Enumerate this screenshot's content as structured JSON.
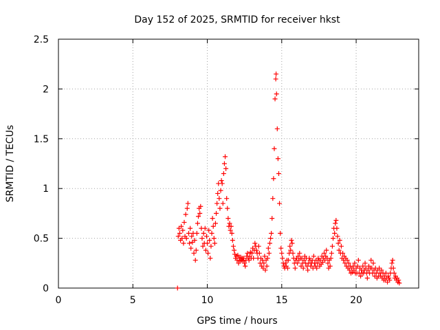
{
  "chart_data": {
    "type": "scatter",
    "title": "Day 152 of 2025, SRMTID for receiver hkst",
    "xlabel": "GPS time / hours",
    "ylabel": "SRMTID / TECUs",
    "xlim": [
      0,
      24.2
    ],
    "ylim": [
      0,
      2.5
    ],
    "xticks": [
      0,
      5,
      10,
      15,
      20
    ],
    "xtick_labels": [
      "0",
      "5",
      "10",
      "15",
      "20"
    ],
    "yticks": [
      0,
      0.5,
      1,
      1.5,
      2,
      2.5
    ],
    "ytick_labels": [
      "0",
      "0.5",
      "1",
      "1.5",
      "2",
      "2.5"
    ],
    "grid": true,
    "marker": "plus",
    "color": "#ff0000",
    "series": [
      {
        "name": "SRMTID",
        "points": [
          [
            8.0,
            0.0
          ],
          [
            8.05,
            0.52
          ],
          [
            8.1,
            0.6
          ],
          [
            8.15,
            0.55
          ],
          [
            8.2,
            0.48
          ],
          [
            8.25,
            0.62
          ],
          [
            8.3,
            0.5
          ],
          [
            8.35,
            0.58
          ],
          [
            8.4,
            0.45
          ],
          [
            8.45,
            0.66
          ],
          [
            8.5,
            0.52
          ],
          [
            8.55,
            0.74
          ],
          [
            8.6,
            0.5
          ],
          [
            8.65,
            0.8
          ],
          [
            8.7,
            0.85
          ],
          [
            8.75,
            0.55
          ],
          [
            8.8,
            0.45
          ],
          [
            8.85,
            0.6
          ],
          [
            8.9,
            0.4
          ],
          [
            8.95,
            0.52
          ],
          [
            9.0,
            0.46
          ],
          [
            9.05,
            0.55
          ],
          [
            9.1,
            0.35
          ],
          [
            9.15,
            0.48
          ],
          [
            9.2,
            0.28
          ],
          [
            9.25,
            0.38
          ],
          [
            9.3,
            0.55
          ],
          [
            9.35,
            0.65
          ],
          [
            9.4,
            0.72
          ],
          [
            9.45,
            0.8
          ],
          [
            9.5,
            0.75
          ],
          [
            9.55,
            0.82
          ],
          [
            9.6,
            0.6
          ],
          [
            9.65,
            0.5
          ],
          [
            9.7,
            0.42
          ],
          [
            9.75,
            0.55
          ],
          [
            9.8,
            0.45
          ],
          [
            9.85,
            0.6
          ],
          [
            9.9,
            0.38
          ],
          [
            9.95,
            0.52
          ],
          [
            10.0,
            0.45
          ],
          [
            10.05,
            0.35
          ],
          [
            10.1,
            0.58
          ],
          [
            10.15,
            0.48
          ],
          [
            10.2,
            0.3
          ],
          [
            10.25,
            0.42
          ],
          [
            10.3,
            0.55
          ],
          [
            10.35,
            0.7
          ],
          [
            10.4,
            0.62
          ],
          [
            10.45,
            0.5
          ],
          [
            10.5,
            0.45
          ],
          [
            10.55,
            0.65
          ],
          [
            10.6,
            0.75
          ],
          [
            10.65,
            0.85
          ],
          [
            10.7,
            0.95
          ],
          [
            10.75,
            1.05
          ],
          [
            10.8,
            0.9
          ],
          [
            10.85,
            0.8
          ],
          [
            10.9,
            0.98
          ],
          [
            10.95,
            1.08
          ],
          [
            11.0,
            1.05
          ],
          [
            11.05,
            0.85
          ],
          [
            11.1,
            1.15
          ],
          [
            11.15,
            1.25
          ],
          [
            11.2,
            1.32
          ],
          [
            11.25,
            1.2
          ],
          [
            11.3,
            0.9
          ],
          [
            11.35,
            0.8
          ],
          [
            11.4,
            0.7
          ],
          [
            11.45,
            0.62
          ],
          [
            11.5,
            0.65
          ],
          [
            11.55,
            0.58
          ],
          [
            11.6,
            0.62
          ],
          [
            11.65,
            0.55
          ],
          [
            11.7,
            0.48
          ],
          [
            11.75,
            0.42
          ],
          [
            11.8,
            0.38
          ],
          [
            11.85,
            0.34
          ],
          [
            11.9,
            0.3
          ],
          [
            11.95,
            0.32
          ],
          [
            12.0,
            0.28
          ],
          [
            12.05,
            0.33
          ],
          [
            12.1,
            0.25
          ],
          [
            12.15,
            0.3
          ],
          [
            12.2,
            0.27
          ],
          [
            12.25,
            0.31
          ],
          [
            12.3,
            0.28
          ],
          [
            12.35,
            0.3
          ],
          [
            12.4,
            0.27
          ],
          [
            12.45,
            0.3
          ],
          [
            12.5,
            0.25
          ],
          [
            12.55,
            0.22
          ],
          [
            12.6,
            0.28
          ],
          [
            12.65,
            0.32
          ],
          [
            12.7,
            0.35
          ],
          [
            12.75,
            0.3
          ],
          [
            12.8,
            0.28
          ],
          [
            12.85,
            0.32
          ],
          [
            12.9,
            0.36
          ],
          [
            12.95,
            0.3
          ],
          [
            13.0,
            0.35
          ],
          [
            13.05,
            0.4
          ],
          [
            13.1,
            0.3
          ],
          [
            13.15,
            0.38
          ],
          [
            13.2,
            0.45
          ],
          [
            13.25,
            0.42
          ],
          [
            13.3,
            0.38
          ],
          [
            13.35,
            0.35
          ],
          [
            13.4,
            0.3
          ],
          [
            13.45,
            0.42
          ],
          [
            13.5,
            0.35
          ],
          [
            13.55,
            0.25
          ],
          [
            13.6,
            0.3
          ],
          [
            13.65,
            0.22
          ],
          [
            13.7,
            0.28
          ],
          [
            13.75,
            0.2
          ],
          [
            13.8,
            0.25
          ],
          [
            13.85,
            0.32
          ],
          [
            13.9,
            0.18
          ],
          [
            13.95,
            0.28
          ],
          [
            14.0,
            0.22
          ],
          [
            14.05,
            0.3
          ],
          [
            14.1,
            0.4
          ],
          [
            14.15,
            0.35
          ],
          [
            14.2,
            0.45
          ],
          [
            14.25,
            0.5
          ],
          [
            14.3,
            0.55
          ],
          [
            14.35,
            0.7
          ],
          [
            14.4,
            0.9
          ],
          [
            14.45,
            1.1
          ],
          [
            14.5,
            1.4
          ],
          [
            14.55,
            1.9
          ],
          [
            14.6,
            2.1
          ],
          [
            14.62,
            2.15
          ],
          [
            14.65,
            1.95
          ],
          [
            14.7,
            1.6
          ],
          [
            14.75,
            1.3
          ],
          [
            14.8,
            1.15
          ],
          [
            14.85,
            0.85
          ],
          [
            14.9,
            0.55
          ],
          [
            14.95,
            0.4
          ],
          [
            15.0,
            0.35
          ],
          [
            15.05,
            0.3
          ],
          [
            15.1,
            0.25
          ],
          [
            15.15,
            0.22
          ],
          [
            15.2,
            0.2
          ],
          [
            15.25,
            0.25
          ],
          [
            15.3,
            0.22
          ],
          [
            15.35,
            0.28
          ],
          [
            15.4,
            0.2
          ],
          [
            15.45,
            0.28
          ],
          [
            15.5,
            0.35
          ],
          [
            15.55,
            0.42
          ],
          [
            15.6,
            0.38
          ],
          [
            15.65,
            0.48
          ],
          [
            15.7,
            0.45
          ],
          [
            15.75,
            0.35
          ],
          [
            15.8,
            0.3
          ],
          [
            15.85,
            0.25
          ],
          [
            15.9,
            0.2
          ],
          [
            15.95,
            0.28
          ],
          [
            16.0,
            0.3
          ],
          [
            16.05,
            0.25
          ],
          [
            16.1,
            0.32
          ],
          [
            16.15,
            0.28
          ],
          [
            16.2,
            0.35
          ],
          [
            16.25,
            0.3
          ],
          [
            16.3,
            0.22
          ],
          [
            16.35,
            0.3
          ],
          [
            16.4,
            0.25
          ],
          [
            16.45,
            0.2
          ],
          [
            16.5,
            0.28
          ],
          [
            16.55,
            0.32
          ],
          [
            16.6,
            0.25
          ],
          [
            16.65,
            0.3
          ],
          [
            16.7,
            0.22
          ],
          [
            16.75,
            0.18
          ],
          [
            16.8,
            0.25
          ],
          [
            16.85,
            0.3
          ],
          [
            16.9,
            0.28
          ],
          [
            16.95,
            0.22
          ],
          [
            17.0,
            0.25
          ],
          [
            17.05,
            0.28
          ],
          [
            17.1,
            0.2
          ],
          [
            17.15,
            0.32
          ],
          [
            17.2,
            0.25
          ],
          [
            17.25,
            0.22
          ],
          [
            17.3,
            0.28
          ],
          [
            17.35,
            0.2
          ],
          [
            17.4,
            0.25
          ],
          [
            17.45,
            0.3
          ],
          [
            17.5,
            0.28
          ],
          [
            17.55,
            0.22
          ],
          [
            17.6,
            0.28
          ],
          [
            17.65,
            0.24
          ],
          [
            17.7,
            0.32
          ],
          [
            17.75,
            0.26
          ],
          [
            17.8,
            0.3
          ],
          [
            17.85,
            0.35
          ],
          [
            17.9,
            0.28
          ],
          [
            17.95,
            0.32
          ],
          [
            18.0,
            0.38
          ],
          [
            18.05,
            0.3
          ],
          [
            18.1,
            0.25
          ],
          [
            18.15,
            0.2
          ],
          [
            18.2,
            0.28
          ],
          [
            18.25,
            0.22
          ],
          [
            18.3,
            0.3
          ],
          [
            18.35,
            0.35
          ],
          [
            18.4,
            0.42
          ],
          [
            18.45,
            0.5
          ],
          [
            18.5,
            0.6
          ],
          [
            18.55,
            0.55
          ],
          [
            18.6,
            0.65
          ],
          [
            18.65,
            0.68
          ],
          [
            18.7,
            0.6
          ],
          [
            18.75,
            0.52
          ],
          [
            18.8,
            0.45
          ],
          [
            18.85,
            0.38
          ],
          [
            18.9,
            0.48
          ],
          [
            18.95,
            0.35
          ],
          [
            19.0,
            0.42
          ],
          [
            19.05,
            0.3
          ],
          [
            19.1,
            0.35
          ],
          [
            19.15,
            0.28
          ],
          [
            19.2,
            0.32
          ],
          [
            19.25,
            0.25
          ],
          [
            19.3,
            0.3
          ],
          [
            19.35,
            0.22
          ],
          [
            19.4,
            0.28
          ],
          [
            19.45,
            0.2
          ],
          [
            19.5,
            0.25
          ],
          [
            19.55,
            0.18
          ],
          [
            19.6,
            0.22
          ],
          [
            19.65,
            0.15
          ],
          [
            19.7,
            0.2
          ],
          [
            19.75,
            0.16
          ],
          [
            19.8,
            0.22
          ],
          [
            19.85,
            0.18
          ],
          [
            19.9,
            0.25
          ],
          [
            19.95,
            0.15
          ],
          [
            20.0,
            0.2
          ],
          [
            20.05,
            0.15
          ],
          [
            20.1,
            0.22
          ],
          [
            20.15,
            0.28
          ],
          [
            20.2,
            0.15
          ],
          [
            20.25,
            0.2
          ],
          [
            20.3,
            0.12
          ],
          [
            20.35,
            0.18
          ],
          [
            20.4,
            0.15
          ],
          [
            20.45,
            0.22
          ],
          [
            20.5,
            0.15
          ],
          [
            20.55,
            0.18
          ],
          [
            20.6,
            0.25
          ],
          [
            20.65,
            0.2
          ],
          [
            20.7,
            0.15
          ],
          [
            20.75,
            0.1
          ],
          [
            20.8,
            0.18
          ],
          [
            20.85,
            0.22
          ],
          [
            20.9,
            0.15
          ],
          [
            20.95,
            0.2
          ],
          [
            21.0,
            0.28
          ],
          [
            21.05,
            0.2
          ],
          [
            21.1,
            0.15
          ],
          [
            21.15,
            0.25
          ],
          [
            21.2,
            0.18
          ],
          [
            21.25,
            0.12
          ],
          [
            21.3,
            0.2
          ],
          [
            21.35,
            0.15
          ],
          [
            21.4,
            0.1
          ],
          [
            21.45,
            0.18
          ],
          [
            21.5,
            0.12
          ],
          [
            21.55,
            0.2
          ],
          [
            21.6,
            0.15
          ],
          [
            21.65,
            0.12
          ],
          [
            21.7,
            0.18
          ],
          [
            21.75,
            0.1
          ],
          [
            21.8,
            0.15
          ],
          [
            21.85,
            0.08
          ],
          [
            21.9,
            0.12
          ],
          [
            21.95,
            0.08
          ],
          [
            22.0,
            0.15
          ],
          [
            22.05,
            0.1
          ],
          [
            22.1,
            0.06
          ],
          [
            22.15,
            0.12
          ],
          [
            22.2,
            0.1
          ],
          [
            22.25,
            0.08
          ],
          [
            22.3,
            0.15
          ],
          [
            22.35,
            0.2
          ],
          [
            22.4,
            0.25
          ],
          [
            22.45,
            0.28
          ],
          [
            22.5,
            0.2
          ],
          [
            22.55,
            0.15
          ],
          [
            22.6,
            0.1
          ],
          [
            22.65,
            0.12
          ],
          [
            22.7,
            0.08
          ],
          [
            22.75,
            0.1
          ],
          [
            22.8,
            0.06
          ],
          [
            22.85,
            0.08
          ],
          [
            22.9,
            0.05
          ]
        ]
      }
    ]
  }
}
